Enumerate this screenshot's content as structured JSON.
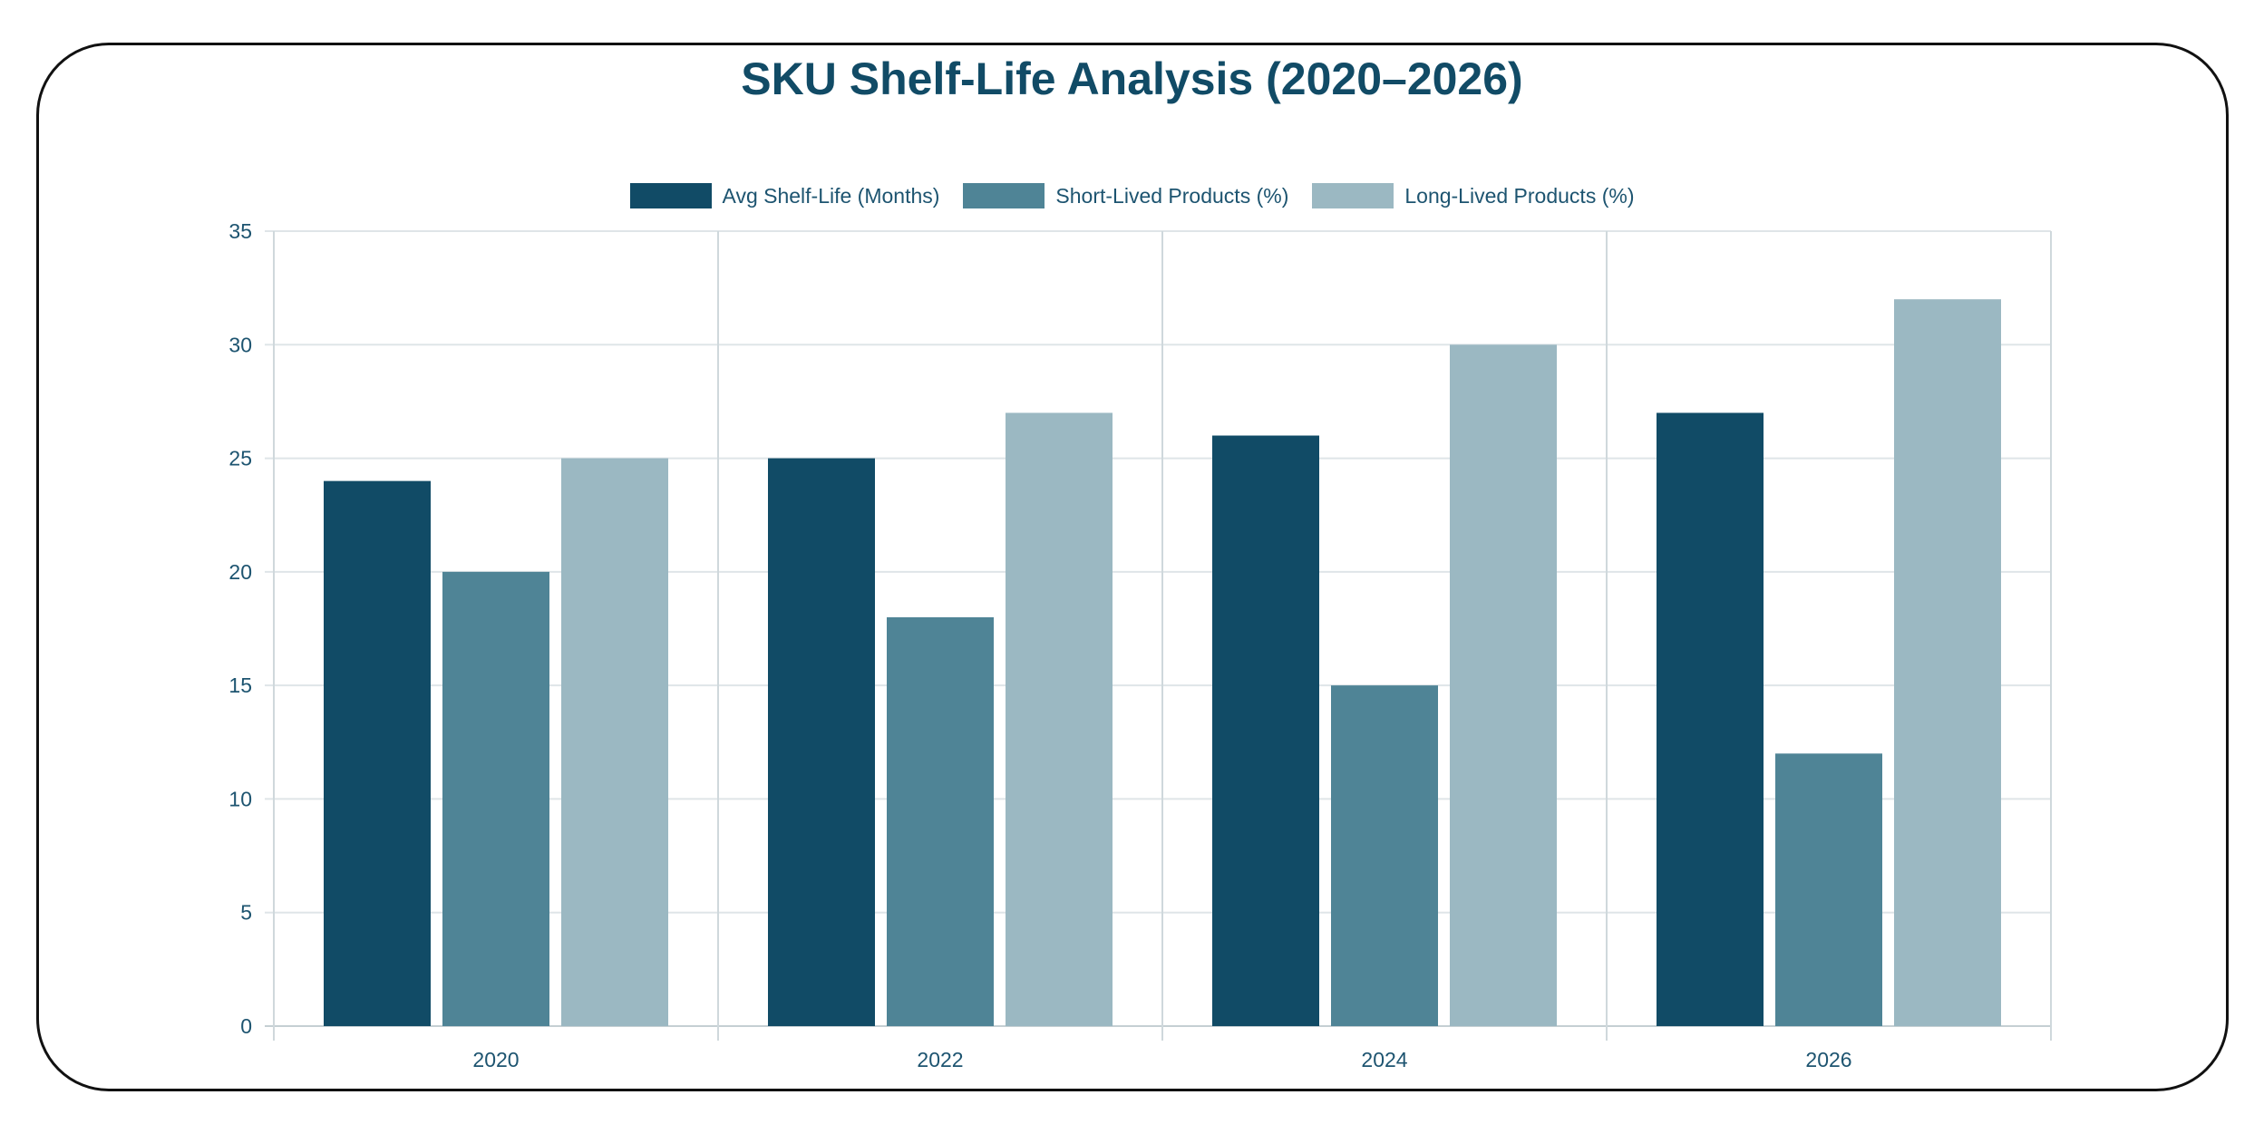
{
  "chart_data": {
    "type": "bar",
    "title": "SKU Shelf-Life Analysis (2020–2026)",
    "categories": [
      "2020",
      "2022",
      "2024",
      "2026"
    ],
    "series": [
      {
        "name": "Avg Shelf-Life (Months)",
        "values": [
          24,
          25,
          26,
          27
        ],
        "color": "#114b66"
      },
      {
        "name": "Short-Lived Products (%)",
        "values": [
          20,
          18,
          15,
          12
        ],
        "color": "#4f8496"
      },
      {
        "name": "Long-Lived Products (%)",
        "values": [
          25,
          27,
          30,
          32
        ],
        "color": "#9bb8c2"
      }
    ],
    "ylim": [
      0,
      35
    ],
    "yticks": [
      0,
      5,
      10,
      15,
      20,
      25,
      30,
      35
    ],
    "grid": true,
    "legend_position": "top"
  }
}
